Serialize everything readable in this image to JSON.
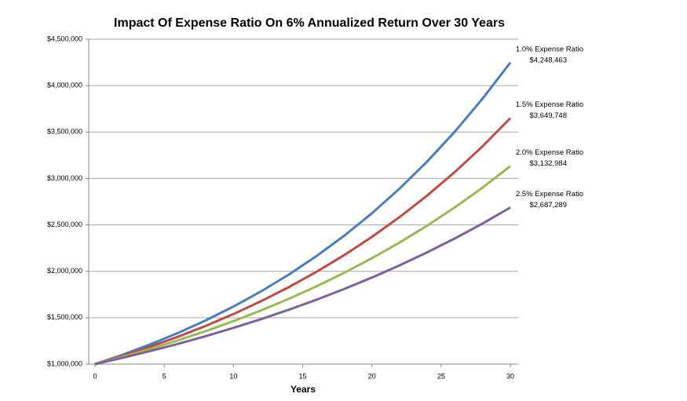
{
  "chart_data": {
    "type": "line",
    "title": "Impact Of Expense Ratio On 6% Annualized Return Over 30 Years",
    "x_label": "Years",
    "x": [
      0,
      2,
      4,
      6,
      8,
      10,
      12,
      14,
      16,
      18,
      20,
      22,
      24,
      26,
      28,
      30
    ],
    "xlim": [
      0,
      30
    ],
    "xticks": [
      0,
      5,
      10,
      15,
      20,
      25,
      30
    ],
    "ylim": [
      1000000,
      4500000
    ],
    "yticks": [
      {
        "value": 1000000,
        "label": "$1,000,000"
      },
      {
        "value": 1500000,
        "label": "$1,500,000"
      },
      {
        "value": 2000000,
        "label": "$2,000,000"
      },
      {
        "value": 2500000,
        "label": "$2,500,000"
      },
      {
        "value": 3000000,
        "label": "$3,000,000"
      },
      {
        "value": 3500000,
        "label": "$3,500,000"
      },
      {
        "value": 4000000,
        "label": "$4,000,000"
      },
      {
        "value": 4500000,
        "label": "$4,500,000"
      }
    ],
    "grid": true,
    "series": [
      {
        "name": "1.0% Expense Ratio",
        "color": "#4a7ebb",
        "values": [
          1000000,
          1101300,
          1212900,
          1335800,
          1471100,
          1620100,
          1784300,
          1965000,
          2164100,
          2383400,
          2624900,
          2890800,
          3183700,
          3506200,
          3861500,
          4248463
        ],
        "value_labels": [
          null,
          null,
          null,
          null,
          null,
          null,
          null,
          null,
          null,
          null,
          null,
          null,
          null,
          null,
          null,
          "$4,248,463"
        ]
      },
      {
        "name": "1.5% Expense Ratio",
        "color": "#be4b48",
        "values": [
          1000000,
          1090100,
          1188400,
          1295500,
          1412300,
          1539600,
          1678400,
          1829700,
          1994600,
          2174400,
          2370400,
          2584100,
          2817000,
          3070900,
          3347700,
          3649748
        ],
        "value_labels": [
          null,
          null,
          null,
          null,
          null,
          null,
          null,
          null,
          null,
          null,
          null,
          null,
          null,
          null,
          null,
          "$3,649,748"
        ]
      },
      {
        "name": "2.0% Expense Ratio",
        "color": "#98b954",
        "values": [
          1000000,
          1079100,
          1164400,
          1256500,
          1355900,
          1463100,
          1578800,
          1703600,
          1838300,
          1983700,
          2140600,
          2309800,
          2492500,
          2689500,
          2902200,
          3132984
        ],
        "value_labels": [
          null,
          null,
          null,
          null,
          null,
          null,
          null,
          null,
          null,
          null,
          null,
          null,
          null,
          null,
          null,
          "$3,132,984"
        ]
      },
      {
        "name": "2.5% Expense Ratio",
        "color": "#7d60a0",
        "values": [
          1000000,
          1068100,
          1140800,
          1218500,
          1301500,
          1390100,
          1484800,
          1585900,
          1693900,
          1809300,
          1932500,
          2064100,
          2204700,
          2354800,
          2515200,
          2687289
        ],
        "value_labels": [
          null,
          null,
          null,
          null,
          null,
          null,
          null,
          null,
          null,
          null,
          null,
          null,
          null,
          null,
          null,
          "$2,687,289"
        ]
      }
    ]
  }
}
